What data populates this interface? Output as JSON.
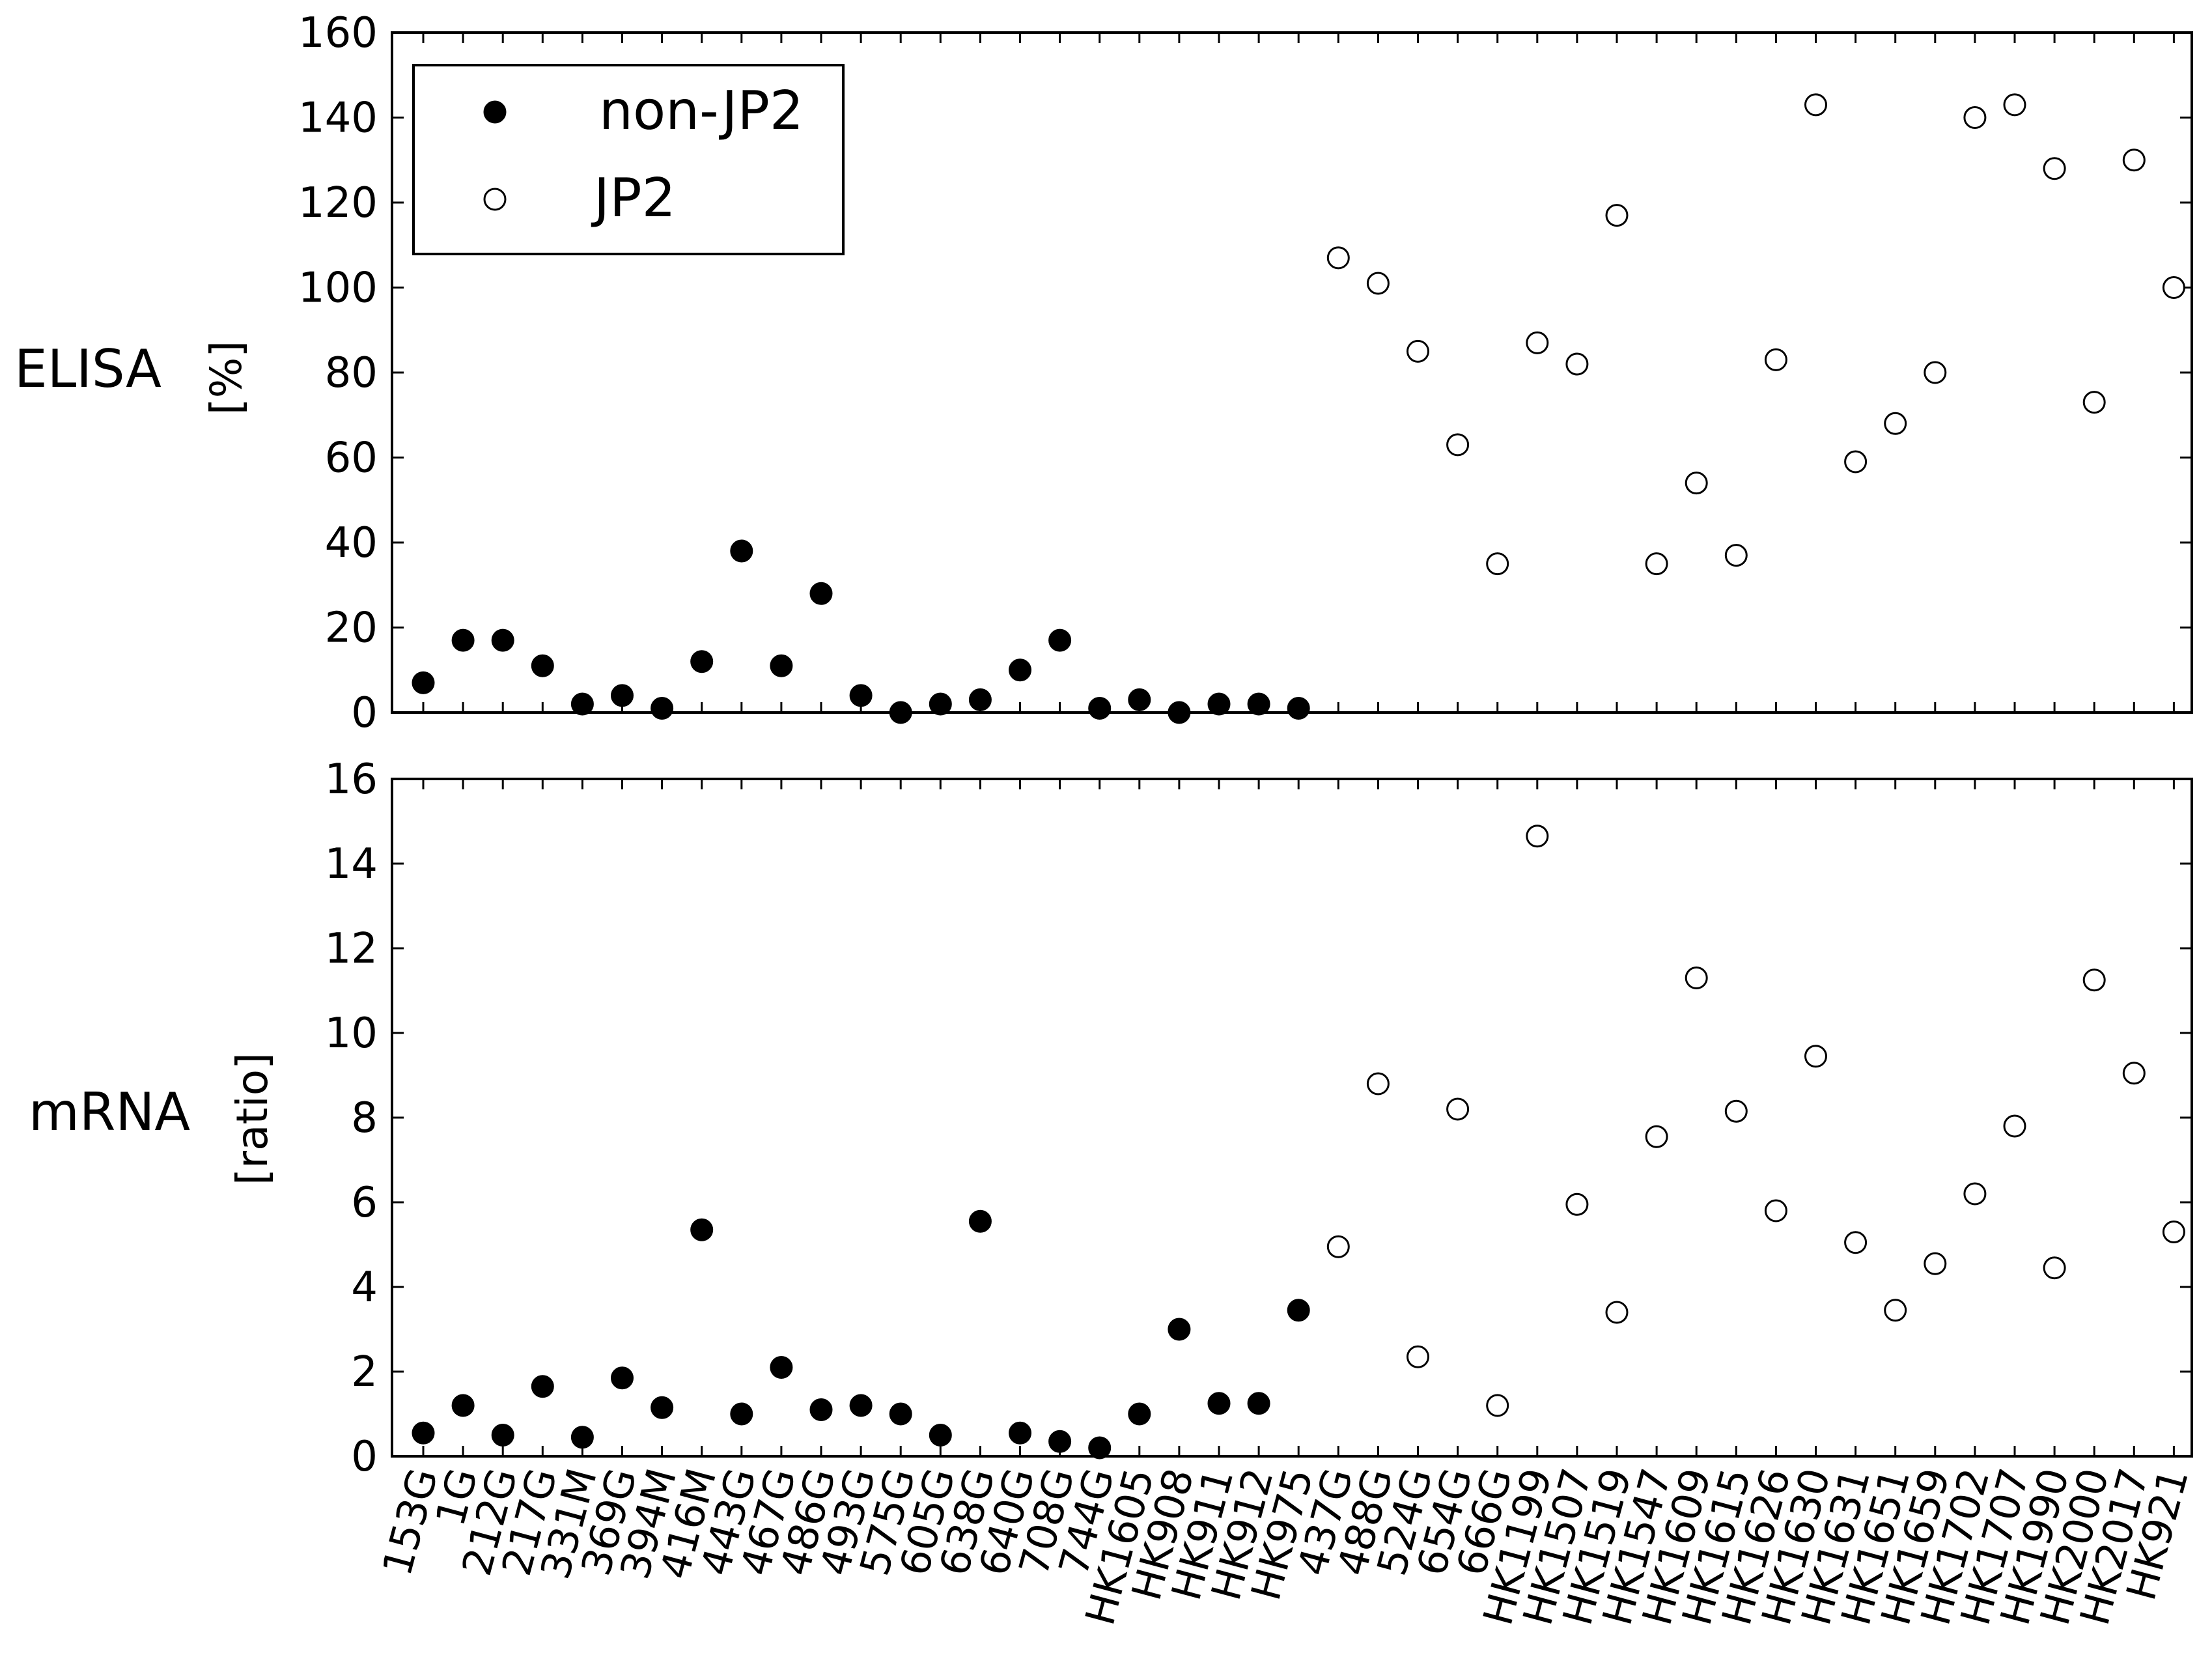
{
  "chart_data": [
    {
      "type": "scatter",
      "panel": "top",
      "row_label": "ELISA",
      "ylabel": "[%]",
      "ylim": [
        0,
        160
      ],
      "yticks": [
        0,
        20,
        40,
        60,
        80,
        100,
        120,
        140,
        160
      ],
      "legend": {
        "placement": "top-left",
        "entries": [
          "non-JP2",
          "JP2"
        ]
      },
      "series": [
        {
          "name": "non-JP2",
          "marker": "filled",
          "values": [
            7,
            17,
            17,
            11,
            2,
            4,
            1,
            12,
            38,
            11,
            28,
            4,
            0,
            2,
            3,
            10,
            17,
            1,
            3,
            0,
            2,
            2,
            1
          ]
        },
        {
          "name": "JP2",
          "marker": "open",
          "values": [
            107,
            101,
            85,
            63,
            35,
            87,
            82,
            117,
            35,
            54,
            37,
            83,
            143,
            59,
            68,
            80,
            140,
            143,
            128,
            73,
            130,
            100
          ]
        }
      ]
    },
    {
      "type": "scatter",
      "panel": "bottom",
      "row_label": "mRNA",
      "ylabel": "[ratio]",
      "ylim": [
        0,
        16
      ],
      "yticks": [
        0,
        2,
        4,
        6,
        8,
        10,
        12,
        14,
        16
      ],
      "series": [
        {
          "name": "non-JP2",
          "marker": "filled",
          "values": [
            0.55,
            1.2,
            0.5,
            1.65,
            0.45,
            1.85,
            1.15,
            5.35,
            1.0,
            2.1,
            1.1,
            1.2,
            1.0,
            0.5,
            5.55,
            0.55,
            0.35,
            0.2,
            1.0,
            3.0,
            1.25,
            1.25,
            3.45
          ]
        },
        {
          "name": "JP2",
          "marker": "open",
          "values": [
            4.95,
            8.8,
            2.35,
            8.2,
            1.2,
            14.65,
            5.95,
            3.4,
            7.55,
            11.3,
            8.15,
            5.8,
            9.45,
            5.05,
            3.45,
            4.55,
            6.2,
            7.8,
            4.45,
            11.25,
            9.05,
            5.3
          ]
        }
      ]
    }
  ],
  "categories": [
    "153G",
    "1G",
    "212G",
    "217G",
    "331M",
    "369G",
    "394M",
    "416M",
    "443G",
    "467G",
    "486G",
    "493G",
    "575G",
    "605G",
    "638G",
    "640G",
    "708G",
    "744G",
    "HK1605",
    "HK908",
    "HK911",
    "HK912",
    "HK975",
    "437G",
    "488G",
    "524G",
    "654G",
    "666G",
    "HK1199",
    "HK1507",
    "HK1519",
    "HK1547",
    "HK1609",
    "HK1615",
    "HK1626",
    "HK1630",
    "HK1631",
    "HK1651",
    "HK1659",
    "HK1702",
    "HK1707",
    "HK1990",
    "HK2000",
    "HK2017",
    "HK921"
  ],
  "colors": {
    "ink": "#000000",
    "background": "#ffffff"
  }
}
